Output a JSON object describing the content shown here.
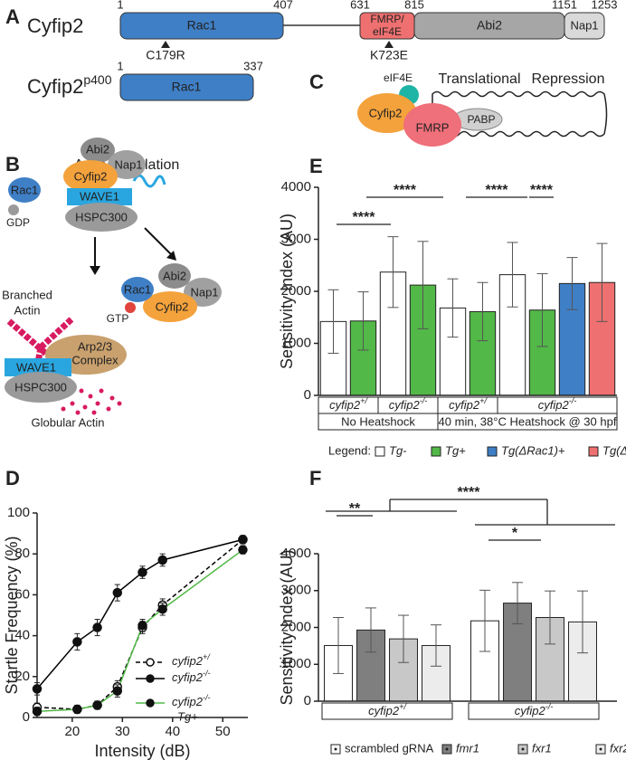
{
  "panel_a": {
    "letter": "A",
    "protein": "Cyfip2",
    "domains": [
      "Rac1",
      "FMRP/",
      "eIF4E",
      "Abi2",
      "Nap1"
    ],
    "positions": [
      1,
      407,
      631,
      815,
      1151,
      1253
    ],
    "mutations": [
      "C179R",
      "K723E"
    ],
    "variant": "Cyfip2",
    "variant_sup": "p400",
    "variant_domain": "Rac1",
    "variant_positions": [
      1,
      337
    ]
  },
  "panel_b": {
    "letter": "B",
    "title": "Actin Regulation",
    "labels": [
      "Rac1",
      "GDP",
      "Abi2",
      "Nap1",
      "Cyfip2",
      "WAVE1",
      "HSPC300",
      "Branched",
      "Actin",
      "Arp2/3",
      "Complex",
      "WAVE1",
      "HSPC300",
      "Globular Actin",
      "Rac1",
      "GTP",
      "Abi2",
      "Nap1",
      "Cyfip2"
    ]
  },
  "panel_c": {
    "letter": "C",
    "labels": [
      "eIF4E",
      "Translational",
      "Repression",
      "Cyfip2",
      "FMRP",
      "PABP"
    ]
  },
  "chart_data": [
    {
      "type": "bar",
      "panel_letter": "E",
      "ylabel": "Sensitivity Index (AU)",
      "categories": [
        "cyfip2",
        "cyfip2",
        "cyfip2",
        "cyfip2"
      ],
      "category_sups": [
        "+/",
        "-/-",
        "+/",
        "-/-"
      ],
      "groups": [
        "No Heatshock",
        "40 min, 38°C Heatshock @ 30 hpf"
      ],
      "legend_title": "Legend:",
      "series": [
        {
          "name": "Tg-",
          "color": "#ffffff",
          "values": [
            1420,
            2370,
            1680,
            2320
          ],
          "errors": [
            610,
            680,
            560,
            620
          ]
        },
        {
          "name": "Tg+",
          "color": "#52b848",
          "values": [
            1430,
            2120,
            1610,
            1640
          ],
          "errors": [
            560,
            840,
            560,
            700
          ]
        },
        {
          "name": "Tg(ΔRac1)+",
          "color": "#3f7fc6",
          "values": [
            null,
            null,
            null,
            2150
          ],
          "errors": [
            null,
            null,
            null,
            500
          ]
        },
        {
          "name": "Tg(ΔFMRP)+",
          "color": "#ef7070",
          "values": [
            null,
            null,
            null,
            2170
          ],
          "errors": [
            null,
            null,
            null,
            750
          ]
        }
      ],
      "annotations": [
        "****",
        "****",
        "****",
        "****"
      ],
      "ylim": [
        0,
        4000
      ],
      "yticks": [
        0,
        1000,
        2000,
        3000,
        4000
      ]
    },
    {
      "type": "line",
      "panel_letter": "D",
      "xlabel": "Intensity (dB)",
      "ylabel": "Startle Frequency (%)",
      "x": [
        13,
        21,
        25,
        29,
        34,
        38,
        54
      ],
      "series": [
        {
          "name": "cyfip2",
          "name_sup": "+/",
          "color": "#000000",
          "linestyle": "dashed",
          "marker": "open",
          "values": [
            5,
            4,
            6,
            15,
            44,
            55,
            87
          ],
          "errors": [
            2,
            2,
            2,
            3,
            3,
            3,
            2
          ]
        },
        {
          "name": "cyfip2",
          "name_sup": "-/-",
          "color": "#000000",
          "linestyle": "solid",
          "marker": "filled",
          "values": [
            14,
            37,
            44,
            61,
            71,
            77,
            87
          ],
          "errors": [
            3,
            4,
            4,
            4,
            3,
            3,
            2
          ]
        },
        {
          "name": "cyfip2",
          "name_sup": "-/-",
          "name_line2": "Tg+",
          "color": "#52b848",
          "linestyle": "solid",
          "marker": "filled",
          "values": [
            3,
            4,
            6,
            13,
            45,
            53,
            82
          ],
          "errors": [
            2,
            2,
            2,
            3,
            3,
            3,
            2
          ]
        }
      ],
      "xlim": [
        13,
        55
      ],
      "xticks": [
        20,
        30,
        40,
        50
      ],
      "ylim": [
        0,
        100
      ],
      "yticks": [
        0,
        20,
        40,
        60,
        80,
        100
      ]
    },
    {
      "type": "bar",
      "panel_letter": "F",
      "ylabel": "Sensitivity Index (AU)",
      "categories": [
        "cyfip2",
        "cyfip2"
      ],
      "category_sups": [
        "+/",
        "-/-"
      ],
      "series": [
        {
          "name": "scrambled gRNA",
          "color": "#ffffff",
          "values": [
            1510,
            2180
          ],
          "errors": [
            760,
            830
          ]
        },
        {
          "name": "fmr1",
          "color": "#7f7f7f",
          "values": [
            1930,
            2660
          ],
          "errors": [
            600,
            560
          ]
        },
        {
          "name": "fxr1",
          "color": "#c8c8c8",
          "values": [
            1690,
            2270
          ],
          "errors": [
            640,
            720
          ]
        },
        {
          "name": "fxr2",
          "color": "#ececec",
          "values": [
            1510,
            2150
          ],
          "errors": [
            560,
            840
          ]
        }
      ],
      "annotations": [
        "****",
        "**",
        "*"
      ],
      "ylim": [
        0,
        4000
      ],
      "yticks": [
        0,
        1000,
        2000,
        3000,
        4000
      ]
    }
  ]
}
